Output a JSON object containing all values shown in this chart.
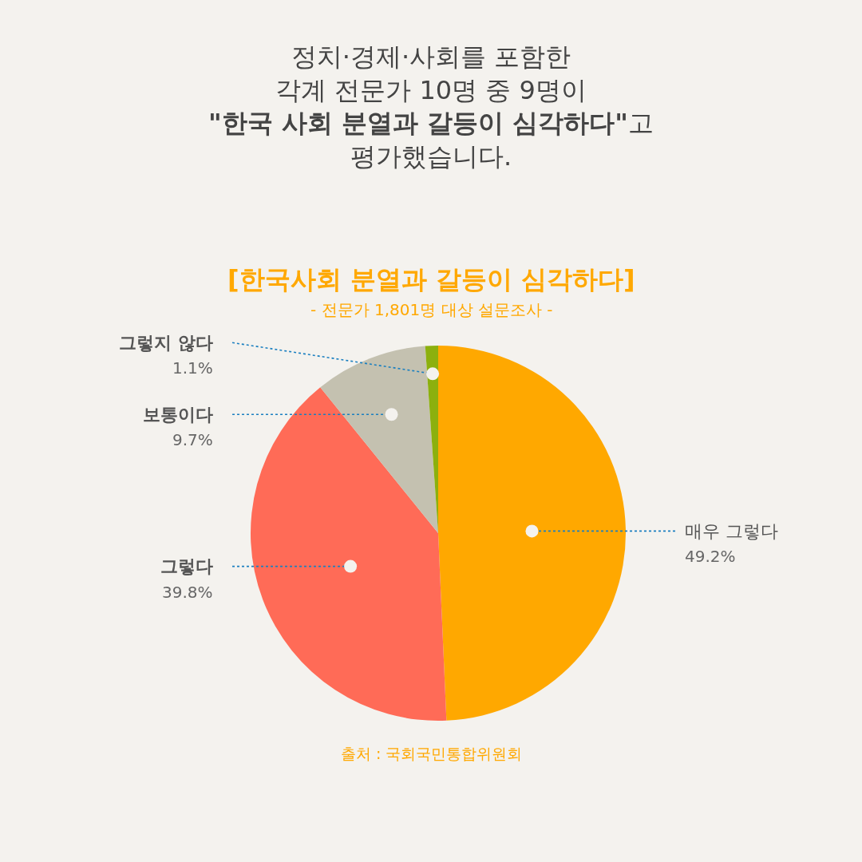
{
  "chart_data": {
    "type": "pie",
    "title": "정치·경제·사회를 포함한\n각계 전문가 10명 중 9명이\n\"한국 사회 분열과 갈등이 심각하다\"고\n평가했습니다.",
    "subtitle": "[한국사회 분열과 갈등이 심각하다]\n- 전문가 1,801명 대상 설문조사 -",
    "categories": [
      "매우 그렇다",
      "그렇다",
      "보통이다",
      "그렇지 않다"
    ],
    "values": [
      49.2,
      39.8,
      9.7,
      1.1
    ],
    "colors": [
      "#ffa800",
      "#ff6b57",
      "#c4c1b0",
      "#8cb00e"
    ],
    "value_labels": [
      "49.2%",
      "39.8%",
      "9.7%",
      "1.1%"
    ],
    "annotations": [
      "출처 : 국회국민통합위원회"
    ],
    "legend": false
  }
}
